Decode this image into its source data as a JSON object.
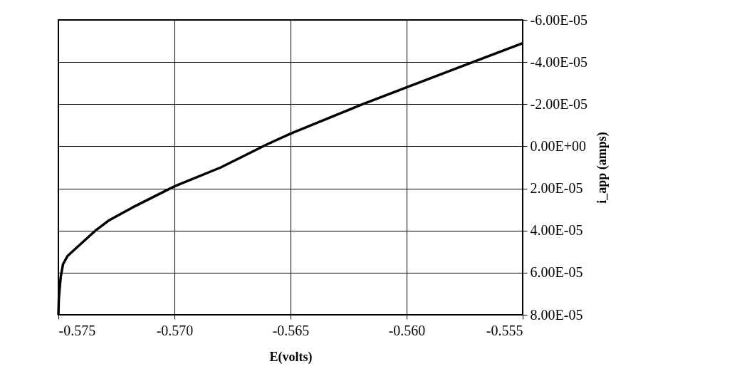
{
  "chart_data": {
    "type": "line",
    "xlabel": "E(volts)",
    "ylabel": "i_app (amps)",
    "x": [
      -0.575,
      -0.57498,
      -0.5749,
      -0.5748,
      -0.5746,
      -0.5744,
      -0.5738,
      -0.5734,
      -0.5728,
      -0.5718,
      -0.57,
      -0.568,
      -0.566,
      -0.565,
      -0.5619,
      -0.56,
      -0.5569,
      -0.555
    ],
    "series": [
      {
        "color": "#000000",
        "values": [
          8e-05,
          7.2e-05,
          6.2e-05,
          5.6e-05,
          5.2e-05,
          5e-05,
          4.4e-05,
          4e-05,
          3.5e-05,
          2.9e-05,
          1.9e-05,
          1e-05,
          -1e-06,
          -6e-06,
          -2e-05,
          -2.8e-05,
          -4.1e-05,
          -4.9e-05
        ]
      }
    ],
    "xlim": [
      -0.575,
      -0.555
    ],
    "xticks": [
      -0.575,
      {
        "value": -0.57,
        "label": "-0.570"
      },
      -0.565,
      {
        "value": -0.56,
        "label": "-0.560"
      },
      -0.555
    ],
    "ylim": [
      8e-05,
      -6e-05
    ],
    "yticks": [
      {
        "value": -6e-05,
        "label": "-6.00E-05"
      },
      {
        "value": -4e-05,
        "label": "-4.00E-05"
      },
      {
        "value": -2e-05,
        "label": "-2.00E-05"
      },
      {
        "value": 0,
        "label": "0.00E+00"
      },
      {
        "value": 2e-05,
        "label": "2.00E-05"
      },
      {
        "value": 4e-05,
        "label": "4.00E-05"
      },
      {
        "value": 6e-05,
        "label": "6.00E-05"
      },
      {
        "value": 8e-05,
        "label": "8.00E-05"
      }
    ],
    "grid": true,
    "marker": "none",
    "line_style": "solid"
  }
}
